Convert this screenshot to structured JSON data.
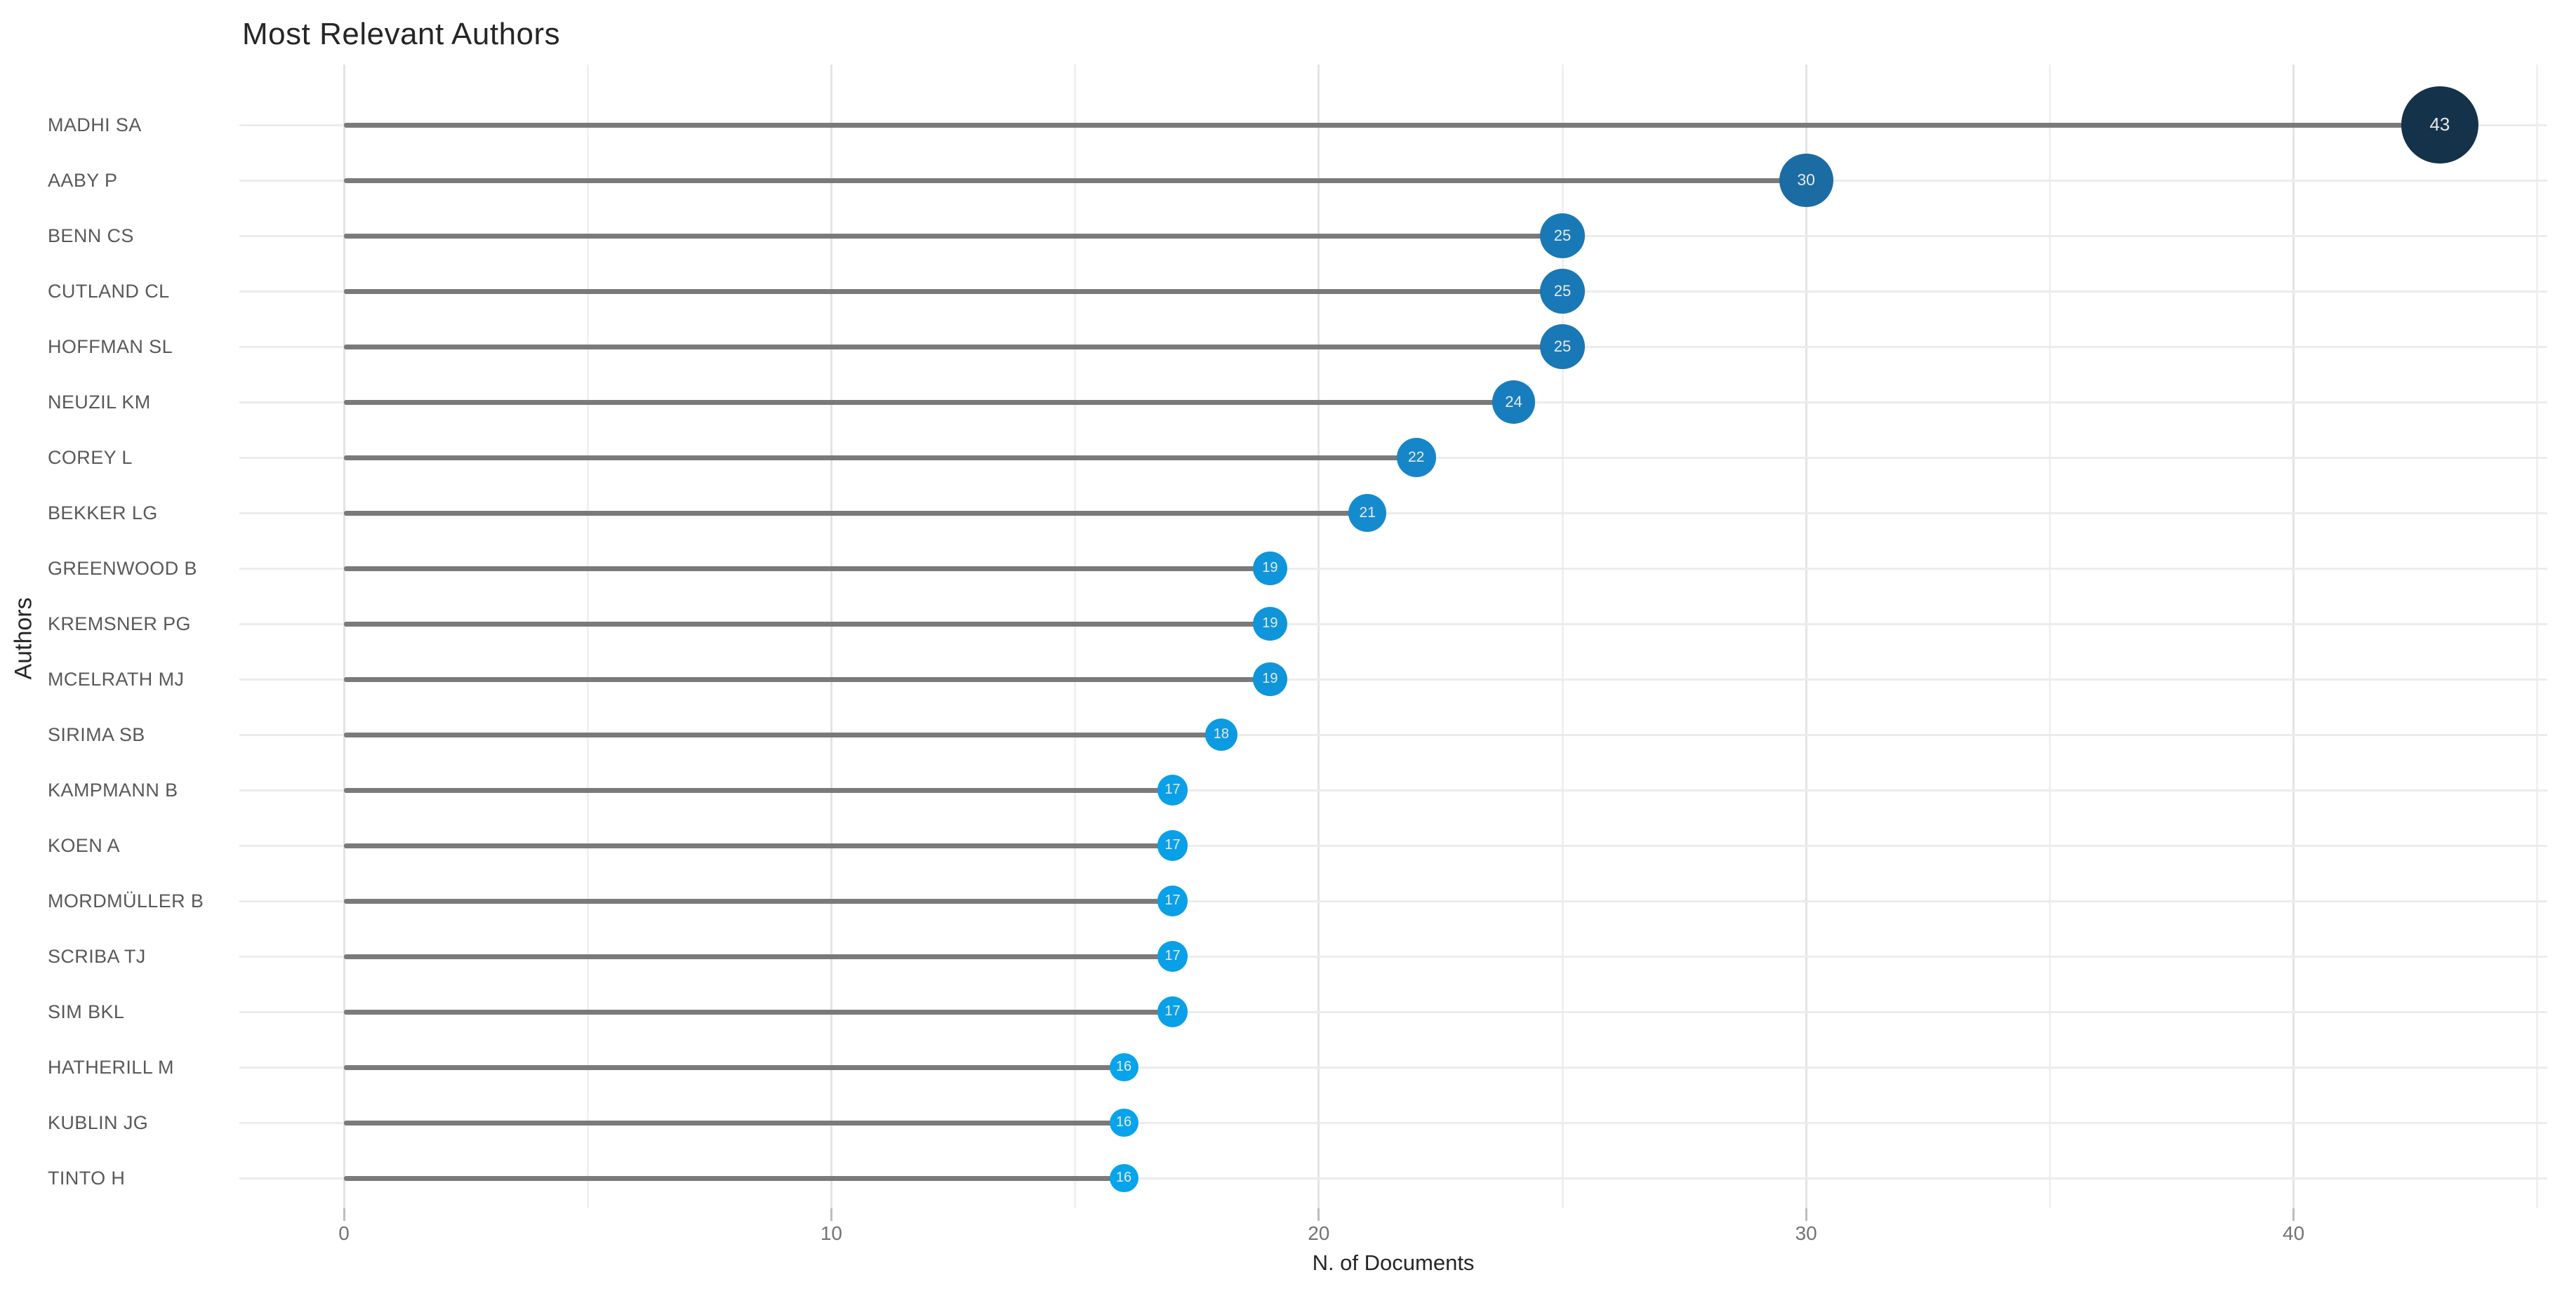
{
  "title": "Most Relevant Authors",
  "chart_data": {
    "type": "bar",
    "variant": "lollipop",
    "title": "Most Relevant Authors",
    "xlabel": "N. of Documents",
    "ylabel": "Authors",
    "xlim": [
      0,
      45
    ],
    "x_major_ticks": [
      0,
      10,
      20,
      30,
      40
    ],
    "x_minor_ticks": [
      5,
      15,
      25,
      35,
      45
    ],
    "grid": true,
    "legend": "none",
    "categories": [
      "MADHI SA",
      "AABY P",
      "BENN CS",
      "CUTLAND CL",
      "HOFFMAN SL",
      "NEUZIL KM",
      "COREY L",
      "BEKKER LG",
      "GREENWOOD B",
      "KREMSNER PG",
      "MCELRATH MJ",
      "SIRIMA SB",
      "KAMPMANN B",
      "KOEN A",
      "MORDMÜLLER B",
      "SCRIBA TJ",
      "SIM BKL",
      "HATHERILL M",
      "KUBLIN JG",
      "TINTO H"
    ],
    "values": [
      43,
      30,
      25,
      25,
      25,
      24,
      22,
      21,
      19,
      19,
      19,
      18,
      17,
      17,
      17,
      17,
      17,
      16,
      16,
      16
    ],
    "dot_colors": [
      "#15324b",
      "#1b6ca3",
      "#1978b6",
      "#1978b6",
      "#1978b6",
      "#187dbd",
      "#1686c8",
      "#148bce",
      "#0f95da",
      "#0f95da",
      "#0f95da",
      "#0c9ae1",
      "#0aa0e7",
      "#0aa0e7",
      "#0aa0e7",
      "#0aa0e7",
      "#0aa0e7",
      "#07a4ec",
      "#07a4ec",
      "#07a4ec"
    ]
  },
  "colors": {
    "background": "#ffffff",
    "stick": "#7a7a7a",
    "row_gridline": "#ececec",
    "major_gridline": "#e4e4e4",
    "minor_gridline": "#f0f0f0",
    "dot_label_text": "#e9e9e9",
    "axis_text": "#737373",
    "author_text": "#595959",
    "title_text": "#262626"
  }
}
